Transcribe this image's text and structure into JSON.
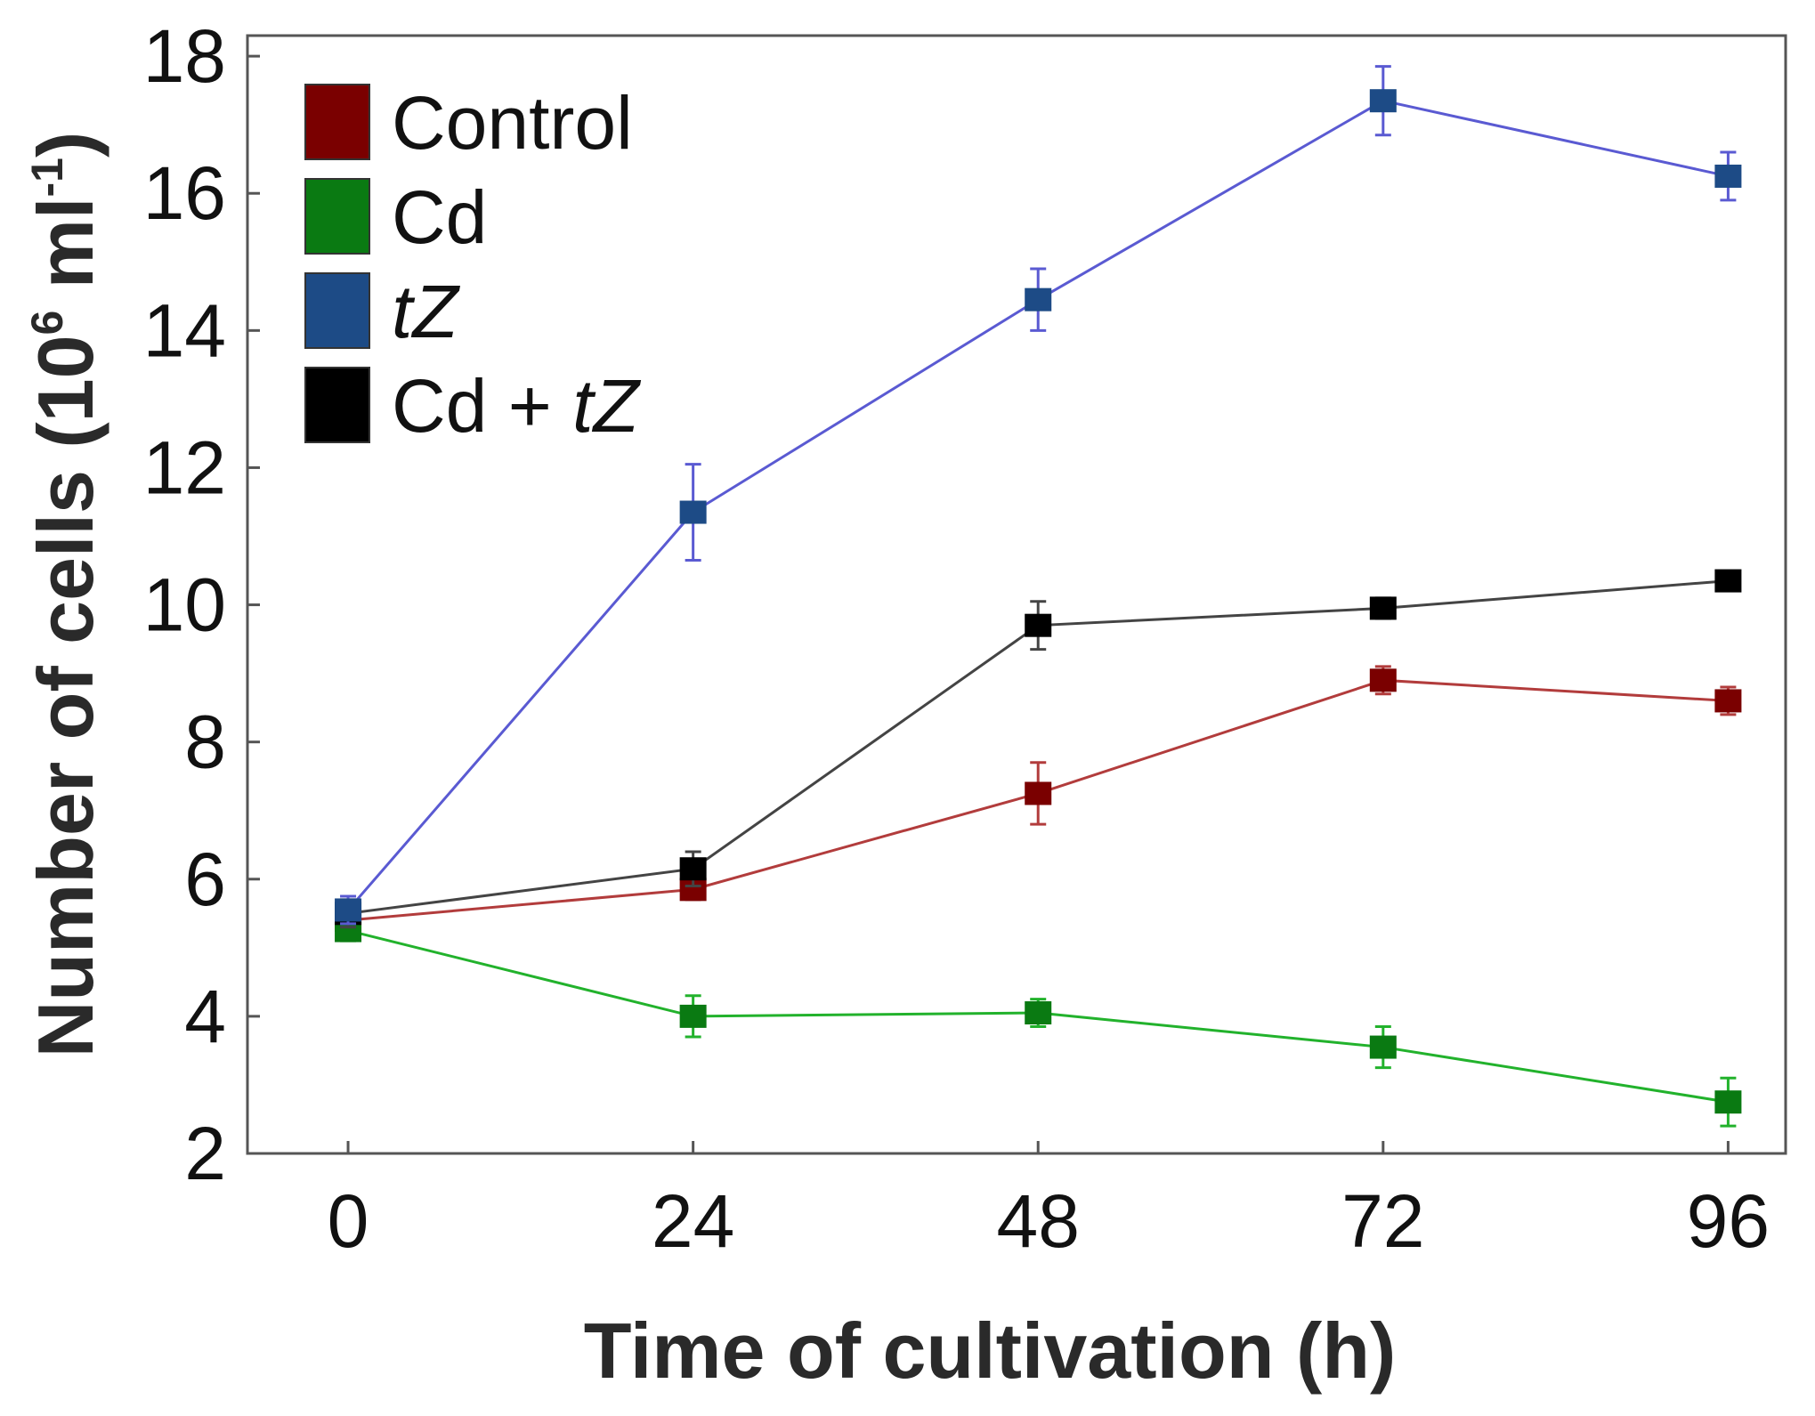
{
  "chart_data": {
    "type": "line",
    "title": "",
    "xlabel": "Time of cultivation (h)",
    "ylabel_parts": {
      "main": "Number of cells (10",
      "exp1": "6",
      "mid": " ml",
      "exp2": "-1",
      "end": ")"
    },
    "x": [
      0,
      24,
      48,
      72,
      96
    ],
    "x_tick_labels": [
      "0",
      "24",
      "48",
      "72",
      "96"
    ],
    "xlim": [
      -7,
      100
    ],
    "ylim": [
      2,
      18.3
    ],
    "y_ticks": [
      2,
      4,
      6,
      8,
      10,
      12,
      14,
      16,
      18
    ],
    "y_tick_labels": [
      "2",
      "4",
      "6",
      "8",
      "10",
      "12",
      "14",
      "16",
      "18"
    ],
    "grid": false,
    "legend_position": "top-left",
    "series": [
      {
        "name": "Control",
        "legend_parts": [
          {
            "text": "Control",
            "italic": false
          }
        ],
        "color": "#7a0000",
        "line_color": "#b23c3c",
        "values": [
          5.4,
          5.85,
          7.25,
          8.9,
          8.6
        ],
        "errors": [
          0.2,
          0.15,
          0.45,
          0.2,
          0.2
        ]
      },
      {
        "name": "Cd",
        "legend_parts": [
          {
            "text": "Cd",
            "italic": false
          }
        ],
        "color": "#0a7a12",
        "line_color": "#22b22c",
        "values": [
          5.25,
          4.0,
          4.05,
          3.55,
          2.75
        ],
        "errors": [
          0.15,
          0.3,
          0.2,
          0.3,
          0.35
        ]
      },
      {
        "name": "tZ",
        "legend_parts": [
          {
            "text": "tZ",
            "italic": true
          }
        ],
        "color": "#1d4b86",
        "line_color": "#5a5ad2",
        "values": [
          5.55,
          11.35,
          14.45,
          17.35,
          16.25
        ],
        "errors": [
          0.2,
          0.7,
          0.45,
          0.5,
          0.35
        ]
      },
      {
        "name": "Cd + tZ",
        "legend_parts": [
          {
            "text": "Cd + ",
            "italic": false
          },
          {
            "text": "tZ",
            "italic": true
          }
        ],
        "color": "#000000",
        "line_color": "#444444",
        "values": [
          5.5,
          6.15,
          9.7,
          9.95,
          10.35
        ],
        "errors": [
          0.2,
          0.25,
          0.35,
          0.15,
          0.05
        ]
      }
    ]
  }
}
